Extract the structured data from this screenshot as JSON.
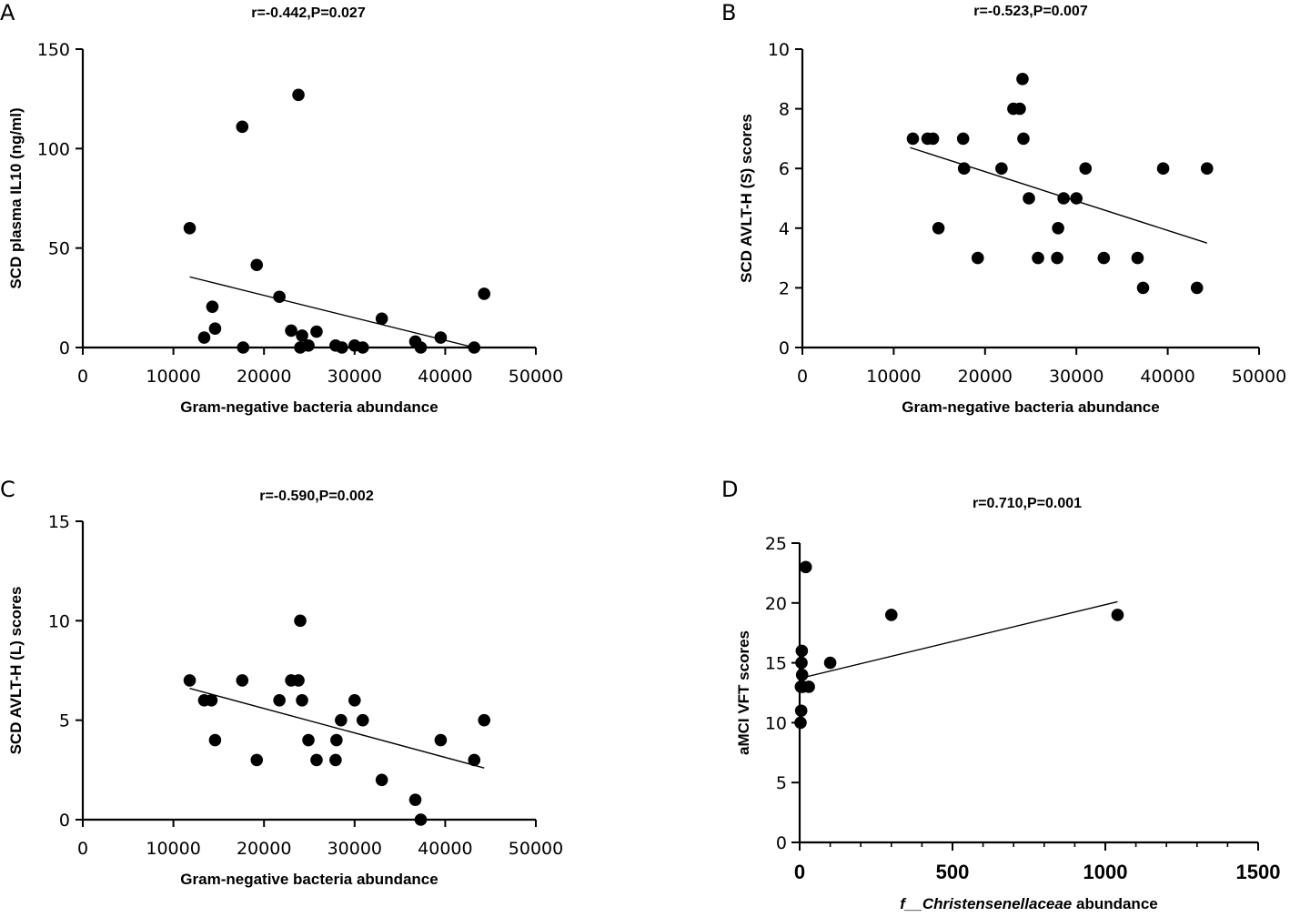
{
  "chart_data": [
    {
      "panel": "A",
      "type": "scatter",
      "title": "r=-0.442,P=0.027",
      "xlabel": "Gram-negative bacteria abundance",
      "ylabel": "SCD plasma IL10 (ng/ml)",
      "xlim": [
        0,
        50000
      ],
      "ylim": [
        0,
        150
      ],
      "xticks": [
        0,
        10000,
        20000,
        30000,
        40000,
        50000
      ],
      "yticks": [
        0,
        50,
        100,
        150
      ],
      "points": [
        [
          11800,
          60
        ],
        [
          13400,
          5
        ],
        [
          14300,
          20.5
        ],
        [
          14600,
          9.5
        ],
        [
          17600,
          111
        ],
        [
          17700,
          0
        ],
        [
          19200,
          41.5
        ],
        [
          21700,
          25.5
        ],
        [
          23000,
          8.5
        ],
        [
          23800,
          127
        ],
        [
          24000,
          0
        ],
        [
          24200,
          6
        ],
        [
          24900,
          1
        ],
        [
          25800,
          8
        ],
        [
          27900,
          1
        ],
        [
          28600,
          0
        ],
        [
          30000,
          1
        ],
        [
          30900,
          0
        ],
        [
          33000,
          14.5
        ],
        [
          36700,
          3
        ],
        [
          37300,
          0
        ],
        [
          39500,
          5
        ],
        [
          43200,
          0
        ],
        [
          44300,
          27
        ]
      ],
      "fit": [
        [
          11800,
          35.5
        ],
        [
          43200,
          0
        ]
      ]
    },
    {
      "panel": "B",
      "type": "scatter",
      "title": "r=-0.523,P=0.007",
      "xlabel": "Gram-negative bacteria abundance",
      "ylabel": "SCD AVLT-H (S) scores",
      "xlim": [
        0,
        50000
      ],
      "ylim": [
        0,
        10
      ],
      "xticks": [
        0,
        10000,
        20000,
        30000,
        40000,
        50000
      ],
      "yticks": [
        0,
        2,
        4,
        6,
        8,
        10
      ],
      "points": [
        [
          12100,
          7
        ],
        [
          13700,
          7
        ],
        [
          14300,
          7
        ],
        [
          14900,
          4
        ],
        [
          17600,
          7
        ],
        [
          17700,
          6
        ],
        [
          19200,
          3
        ],
        [
          21800,
          6
        ],
        [
          23100,
          8
        ],
        [
          23800,
          8
        ],
        [
          24100,
          9
        ],
        [
          24200,
          7
        ],
        [
          24800,
          5
        ],
        [
          25800,
          3
        ],
        [
          27900,
          3
        ],
        [
          28000,
          4
        ],
        [
          28600,
          5
        ],
        [
          30000,
          5
        ],
        [
          31000,
          6
        ],
        [
          33000,
          3
        ],
        [
          36700,
          3
        ],
        [
          37300,
          2
        ],
        [
          39500,
          6
        ],
        [
          43200,
          2
        ],
        [
          44300,
          6
        ]
      ],
      "fit": [
        [
          11800,
          6.7
        ],
        [
          44300,
          3.5
        ]
      ]
    },
    {
      "panel": "C",
      "type": "scatter",
      "title": "r=-0.590,P=0.002",
      "xlabel": "Gram-negative bacteria abundance",
      "ylabel": "SCD AVLT-H (L) scores",
      "xlim": [
        0,
        50000
      ],
      "ylim": [
        0,
        15
      ],
      "xticks": [
        0,
        10000,
        20000,
        30000,
        40000,
        50000
      ],
      "yticks": [
        0,
        5,
        10,
        15
      ],
      "points": [
        [
          11800,
          7
        ],
        [
          13400,
          6
        ],
        [
          14200,
          6
        ],
        [
          14600,
          4
        ],
        [
          17600,
          7
        ],
        [
          19200,
          3
        ],
        [
          21700,
          6
        ],
        [
          23000,
          7
        ],
        [
          23800,
          7
        ],
        [
          24000,
          10
        ],
        [
          24200,
          6
        ],
        [
          24900,
          4
        ],
        [
          25800,
          3
        ],
        [
          27900,
          3
        ],
        [
          28000,
          4
        ],
        [
          28500,
          5
        ],
        [
          30000,
          6
        ],
        [
          30900,
          5
        ],
        [
          33000,
          2
        ],
        [
          36700,
          1
        ],
        [
          37300,
          0
        ],
        [
          39500,
          4
        ],
        [
          43200,
          3
        ],
        [
          44300,
          5
        ]
      ],
      "fit": [
        [
          11800,
          6.6
        ],
        [
          44300,
          2.6
        ]
      ]
    },
    {
      "panel": "D",
      "type": "scatter",
      "title": "r=0.710,P=0.001",
      "xlabel_prefix": "f__",
      "xlabel_italic": "Christensenellaceae",
      "xlabel_suffix": " abundance",
      "ylabel": "aMCI VFT scores",
      "xlim": [
        0,
        1500
      ],
      "ylim": [
        0,
        25
      ],
      "xticks": [
        0,
        500,
        1000,
        1500
      ],
      "yticks": [
        0,
        5,
        10,
        15,
        20,
        25
      ],
      "points": [
        [
          3,
          10
        ],
        [
          5,
          11
        ],
        [
          4,
          13
        ],
        [
          6,
          15
        ],
        [
          7,
          16
        ],
        [
          8,
          14
        ],
        [
          10,
          13
        ],
        [
          20,
          23
        ],
        [
          30,
          13
        ],
        [
          100,
          15
        ],
        [
          300,
          19
        ],
        [
          1040,
          19
        ]
      ],
      "fit": [
        [
          0,
          13.7
        ],
        [
          1040,
          20.1
        ]
      ]
    }
  ]
}
